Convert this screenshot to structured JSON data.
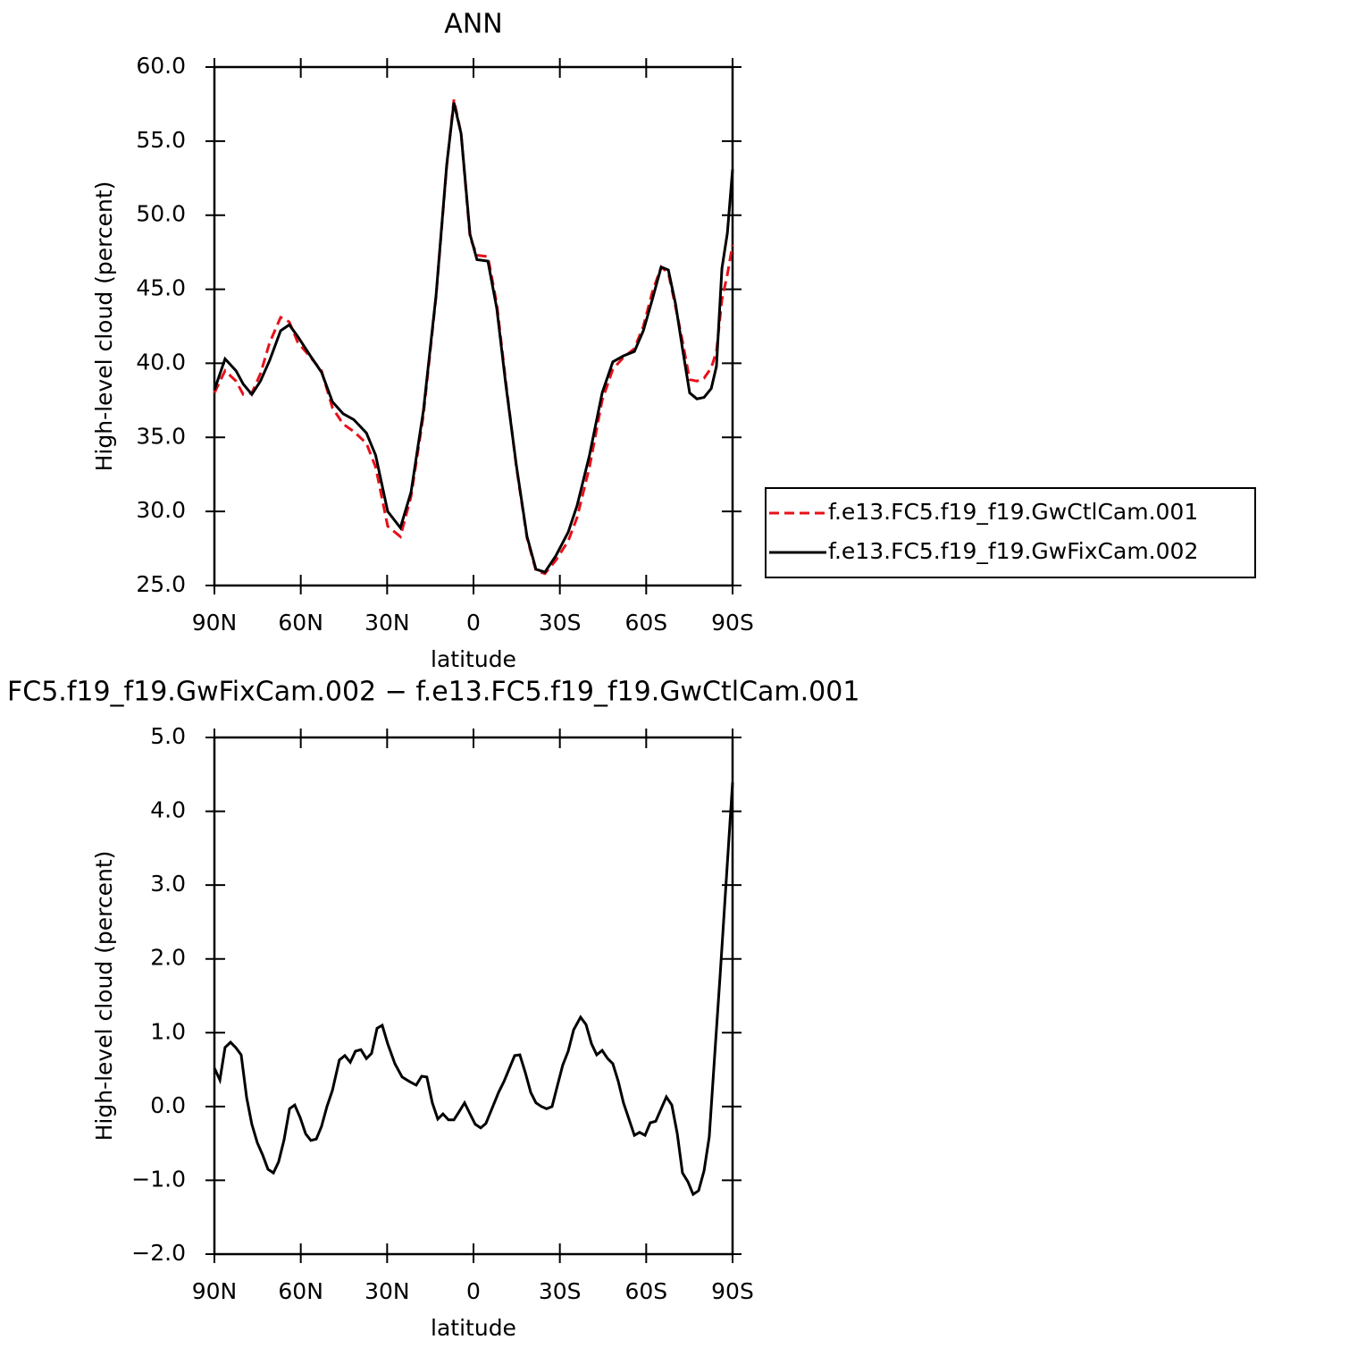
{
  "chart_data": [
    {
      "type": "line",
      "title": "ANN",
      "xlabel": "latitude",
      "ylabel": "High-level cloud (percent)",
      "xlim": [
        90,
        -90
      ],
      "xticks": [
        {
          "value": 90,
          "label": "90N"
        },
        {
          "value": 60,
          "label": "60N"
        },
        {
          "value": 30,
          "label": "30N"
        },
        0,
        {
          "value": -30,
          "label": "30S"
        },
        {
          "value": -60,
          "label": "60S"
        },
        {
          "value": -90,
          "label": "90S"
        }
      ],
      "ylim": [
        25,
        60
      ],
      "yticks": [
        {
          "value": 25,
          "label": "25.0"
        },
        {
          "value": 30,
          "label": "30.0"
        },
        {
          "value": 35,
          "label": "35.0"
        },
        {
          "value": 40,
          "label": "40.0"
        },
        {
          "value": 45,
          "label": "45.0"
        },
        {
          "value": 50,
          "label": "50.0"
        },
        {
          "value": 55,
          "label": "55.0"
        },
        {
          "value": 60,
          "label": "60.0"
        }
      ],
      "legend": "outside right",
      "x": [
        90,
        86.3,
        82.5,
        80,
        77,
        74,
        70.8,
        67,
        64,
        61,
        57,
        52.8,
        49,
        45.3,
        41.6,
        37.2,
        34,
        29.8,
        25.4,
        21.7,
        17.4,
        13,
        9.3,
        6.8,
        4.3,
        1.2,
        -1.2,
        -5,
        -8.1,
        -11.2,
        -14.9,
        -18.6,
        -21.7,
        -24.8,
        -28.6,
        -32.9,
        -36,
        -40.3,
        -44.7,
        -48.4,
        -52.1,
        -55.9,
        -59,
        -62.1,
        -65.2,
        -67.7,
        -70.2,
        -72.6,
        -75.1,
        -77.6,
        -80.1,
        -82.6,
        -84.4,
        -86.3,
        -88.2,
        -90
      ],
      "series": [
        {
          "name": "f.e13.FC5.f19_f19.GwCtlCam.001",
          "color": "#e8101a",
          "dash": true,
          "values": [
            38.0,
            39.5,
            38.8,
            37.9,
            38.0,
            39.3,
            41.4,
            43.1,
            42.8,
            41.4,
            40.5,
            39.5,
            37.0,
            35.9,
            35.4,
            34.6,
            33.0,
            29.0,
            28.3,
            31.0,
            36.5,
            44.5,
            53.3,
            57.8,
            55.5,
            48.5,
            47.3,
            47.2,
            44.0,
            38.8,
            33.0,
            28.2,
            26.0,
            25.8,
            26.7,
            28.0,
            29.6,
            33.0,
            37.5,
            39.6,
            40.4,
            41.0,
            42.5,
            44.8,
            46.5,
            46.1,
            43.8,
            41.5,
            38.9,
            38.8,
            39.0,
            39.7,
            40.8,
            44.3,
            46.0,
            48.0
          ]
        },
        {
          "name": "f.e13.FC5.f19_f19.GwFixCam.002",
          "color": "#000000",
          "dash": false,
          "values": [
            38.2,
            40.3,
            39.5,
            38.6,
            37.9,
            38.8,
            40.2,
            42.2,
            42.6,
            41.8,
            40.6,
            39.4,
            37.4,
            36.6,
            36.2,
            35.3,
            33.8,
            30.0,
            28.9,
            31.3,
            36.8,
            44.6,
            53.4,
            57.6,
            55.5,
            48.7,
            47.0,
            46.9,
            43.7,
            38.6,
            33.1,
            28.3,
            26.1,
            25.9,
            27.0,
            28.6,
            30.4,
            33.8,
            38.0,
            40.1,
            40.5,
            40.8,
            42.2,
            44.3,
            46.5,
            46.3,
            44.0,
            41.0,
            38.0,
            37.6,
            37.7,
            38.3,
            39.8,
            46.4,
            48.8,
            53.1
          ]
        }
      ]
    },
    {
      "type": "line",
      "title": "FC5.f19_f19.GwFixCam.002 − f.e13.FC5.f19_f19.GwCtlCam.001",
      "xlabel": "latitude",
      "ylabel": "High-level cloud (percent)",
      "xlim": [
        90,
        -90
      ],
      "xticks": [
        {
          "value": 90,
          "label": "90N"
        },
        {
          "value": 60,
          "label": "60N"
        },
        {
          "value": 30,
          "label": "30N"
        },
        0,
        {
          "value": -30,
          "label": "30S"
        },
        {
          "value": -60,
          "label": "60S"
        },
        {
          "value": -90,
          "label": "90S"
        }
      ],
      "ylim": [
        -2,
        5
      ],
      "yticks": [
        {
          "value": -2,
          "label": "−2.0"
        },
        {
          "value": -1,
          "label": "−1.0"
        },
        {
          "value": 0,
          "label": "0.0"
        },
        {
          "value": 1,
          "label": "1.0"
        },
        {
          "value": 2,
          "label": "2.0"
        },
        {
          "value": 3,
          "label": "3.0"
        },
        {
          "value": 4,
          "label": "4.0"
        },
        {
          "value": 5,
          "label": "5.0"
        }
      ],
      "x": [
        90,
        88.1,
        86.3,
        84.4,
        82.6,
        80.7,
        78.8,
        77.0,
        75.1,
        73.2,
        71.4,
        69.5,
        67.7,
        65.8,
        63.9,
        62.1,
        60.2,
        58.3,
        56.5,
        54.6,
        52.8,
        50.9,
        49.0,
        46.6,
        44.7,
        42.8,
        41.0,
        39.1,
        37.2,
        35.4,
        33.5,
        31.7,
        29.8,
        27.3,
        24.8,
        22.3,
        19.9,
        18.0,
        16.2,
        14.3,
        12.4,
        10.6,
        8.7,
        6.8,
        5.0,
        3.1,
        1.2,
        -0.6,
        -2.5,
        -4.3,
        -6.2,
        -8.7,
        -10.6,
        -12.4,
        -14.3,
        -16.1,
        -18.0,
        -19.9,
        -21.7,
        -23.6,
        -25.4,
        -27.3,
        -29.2,
        -31.0,
        -32.9,
        -34.8,
        -37.2,
        -39.1,
        -41.0,
        -42.8,
        -44.7,
        -46.6,
        -48.4,
        -50.3,
        -52.1,
        -54.0,
        -55.9,
        -57.7,
        -59.6,
        -61.4,
        -63.3,
        -65.2,
        -67.0,
        -68.9,
        -70.8,
        -72.6,
        -74.5,
        -76.3,
        -78.2,
        -80.1,
        -81.9,
        -83.8,
        -85.7,
        -87.5,
        -90
      ],
      "series": [
        {
          "color": "#000000",
          "dash": false,
          "values": [
            0.52,
            0.36,
            0.8,
            0.87,
            0.8,
            0.7,
            0.12,
            -0.24,
            -0.49,
            -0.66,
            -0.85,
            -0.9,
            -0.75,
            -0.45,
            -0.03,
            0.02,
            -0.15,
            -0.37,
            -0.46,
            -0.44,
            -0.27,
            0.0,
            0.22,
            0.63,
            0.69,
            0.6,
            0.75,
            0.77,
            0.65,
            0.72,
            1.06,
            1.1,
            0.85,
            0.58,
            0.4,
            0.34,
            0.29,
            0.41,
            0.4,
            0.05,
            -0.17,
            -0.1,
            -0.18,
            -0.18,
            -0.07,
            0.05,
            -0.1,
            -0.24,
            -0.29,
            -0.23,
            -0.05,
            0.19,
            0.34,
            0.51,
            0.69,
            0.7,
            0.46,
            0.19,
            0.05,
            0.0,
            -0.03,
            0.0,
            0.29,
            0.56,
            0.75,
            1.04,
            1.21,
            1.11,
            0.85,
            0.7,
            0.76,
            0.65,
            0.58,
            0.34,
            0.05,
            -0.17,
            -0.39,
            -0.35,
            -0.39,
            -0.22,
            -0.2,
            -0.03,
            0.13,
            0.02,
            -0.37,
            -0.9,
            -1.02,
            -1.19,
            -1.14,
            -0.87,
            -0.41,
            0.7,
            1.79,
            2.88,
            4.39
          ]
        }
      ]
    }
  ]
}
